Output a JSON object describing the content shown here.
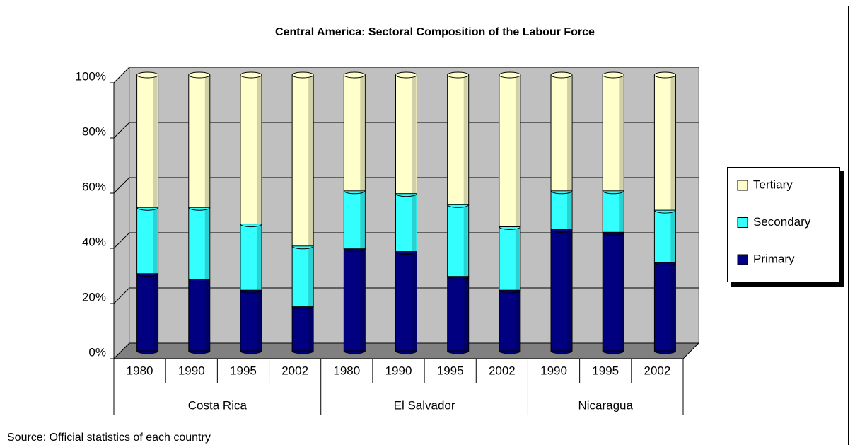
{
  "chart_data": {
    "type": "bar",
    "stacked": true,
    "percent": true,
    "three_d": true,
    "title": "Central America: Sectoral Composition of the Labour Force",
    "source": "Source: Official statistics of each country",
    "groups": [
      {
        "name": "Costa Rica",
        "categories": [
          "1980",
          "1990",
          "1995",
          "2002"
        ]
      },
      {
        "name": "El Salvador",
        "categories": [
          "1980",
          "1990",
          "1995",
          "2002"
        ]
      },
      {
        "name": "Nicaragua",
        "categories": [
          "1990",
          "1995",
          "2002"
        ]
      }
    ],
    "series": [
      {
        "name": "Primary",
        "color": "#000080",
        "values": [
          28,
          26,
          22,
          16,
          37,
          36,
          27,
          22,
          44,
          43,
          32
        ]
      },
      {
        "name": "Secondary",
        "color": "#33ffff",
        "values": [
          24,
          26,
          24,
          22,
          21,
          21,
          26,
          23,
          14,
          15,
          19
        ]
      },
      {
        "name": "Tertiary",
        "color": "#ffffcc",
        "values": [
          48,
          48,
          54,
          62,
          42,
          43,
          47,
          55,
          42,
          42,
          49
        ]
      }
    ],
    "ylim": [
      0,
      100
    ],
    "yticks": [
      {
        "value": 0,
        "label": "0%"
      },
      {
        "value": 20,
        "label": "20%"
      },
      {
        "value": 40,
        "label": "40%"
      },
      {
        "value": 60,
        "label": "60%"
      },
      {
        "value": 80,
        "label": "80%"
      },
      {
        "value": 100,
        "label": "100%"
      }
    ],
    "grid": true,
    "legend": "right"
  }
}
